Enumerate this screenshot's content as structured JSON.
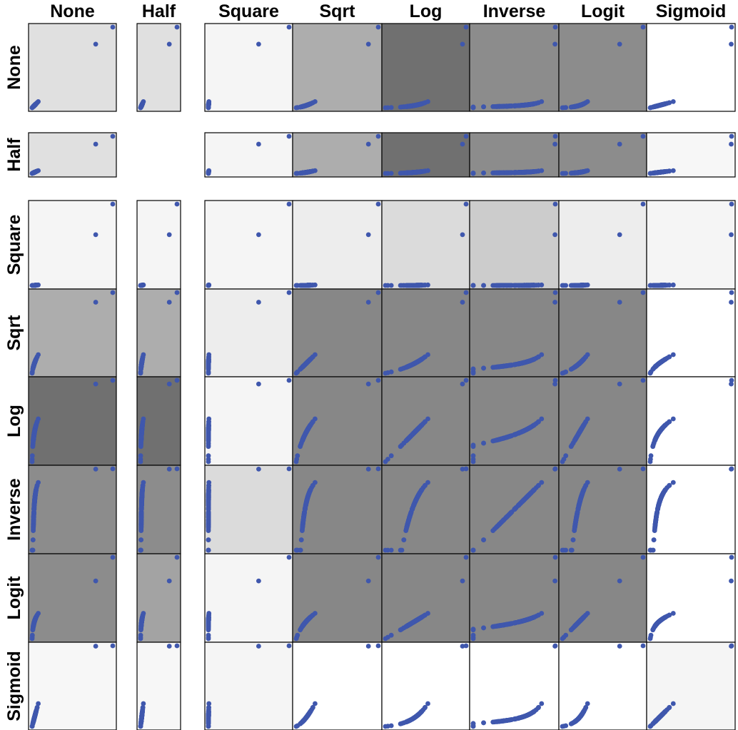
{
  "chart_data": {
    "type": "scatter",
    "variables": [
      "None",
      "Half",
      "Square",
      "Sqrt",
      "Log",
      "Inverse",
      "Logit",
      "Sigmoid"
    ],
    "column_labels": [
      "None",
      "Half",
      "Square",
      "Sqrt",
      "Log",
      "Inverse",
      "Logit",
      "Sigmoid"
    ],
    "row_labels": [
      "None",
      "Half",
      "Square",
      "Sqrt",
      "Log",
      "Inverse",
      "Logit",
      "Sigmoid"
    ],
    "point_color": "#3f57ad",
    "cell_shading": [
      [
        0.88,
        0.88,
        0.96,
        0.68,
        0.44,
        0.55,
        0.55,
        1.0
      ],
      [
        0.88,
        null,
        0.96,
        0.68,
        0.44,
        0.55,
        0.55,
        0.97
      ],
      [
        0.96,
        0.96,
        0.96,
        0.93,
        0.86,
        0.8,
        0.93,
        0.96
      ],
      [
        0.68,
        0.68,
        0.93,
        0.53,
        0.53,
        0.53,
        0.53,
        1.0
      ],
      [
        0.44,
        0.44,
        0.96,
        0.53,
        0.53,
        0.53,
        0.53,
        1.0
      ],
      [
        0.55,
        0.55,
        0.86,
        0.53,
        0.53,
        0.53,
        0.53,
        1.0
      ],
      [
        0.55,
        0.64,
        0.96,
        0.53,
        0.53,
        0.53,
        0.53,
        1.0
      ],
      [
        0.97,
        0.97,
        0.96,
        1.0,
        1.0,
        1.0,
        1.0,
        0.96
      ]
    ],
    "grid": false,
    "legend": "none"
  }
}
